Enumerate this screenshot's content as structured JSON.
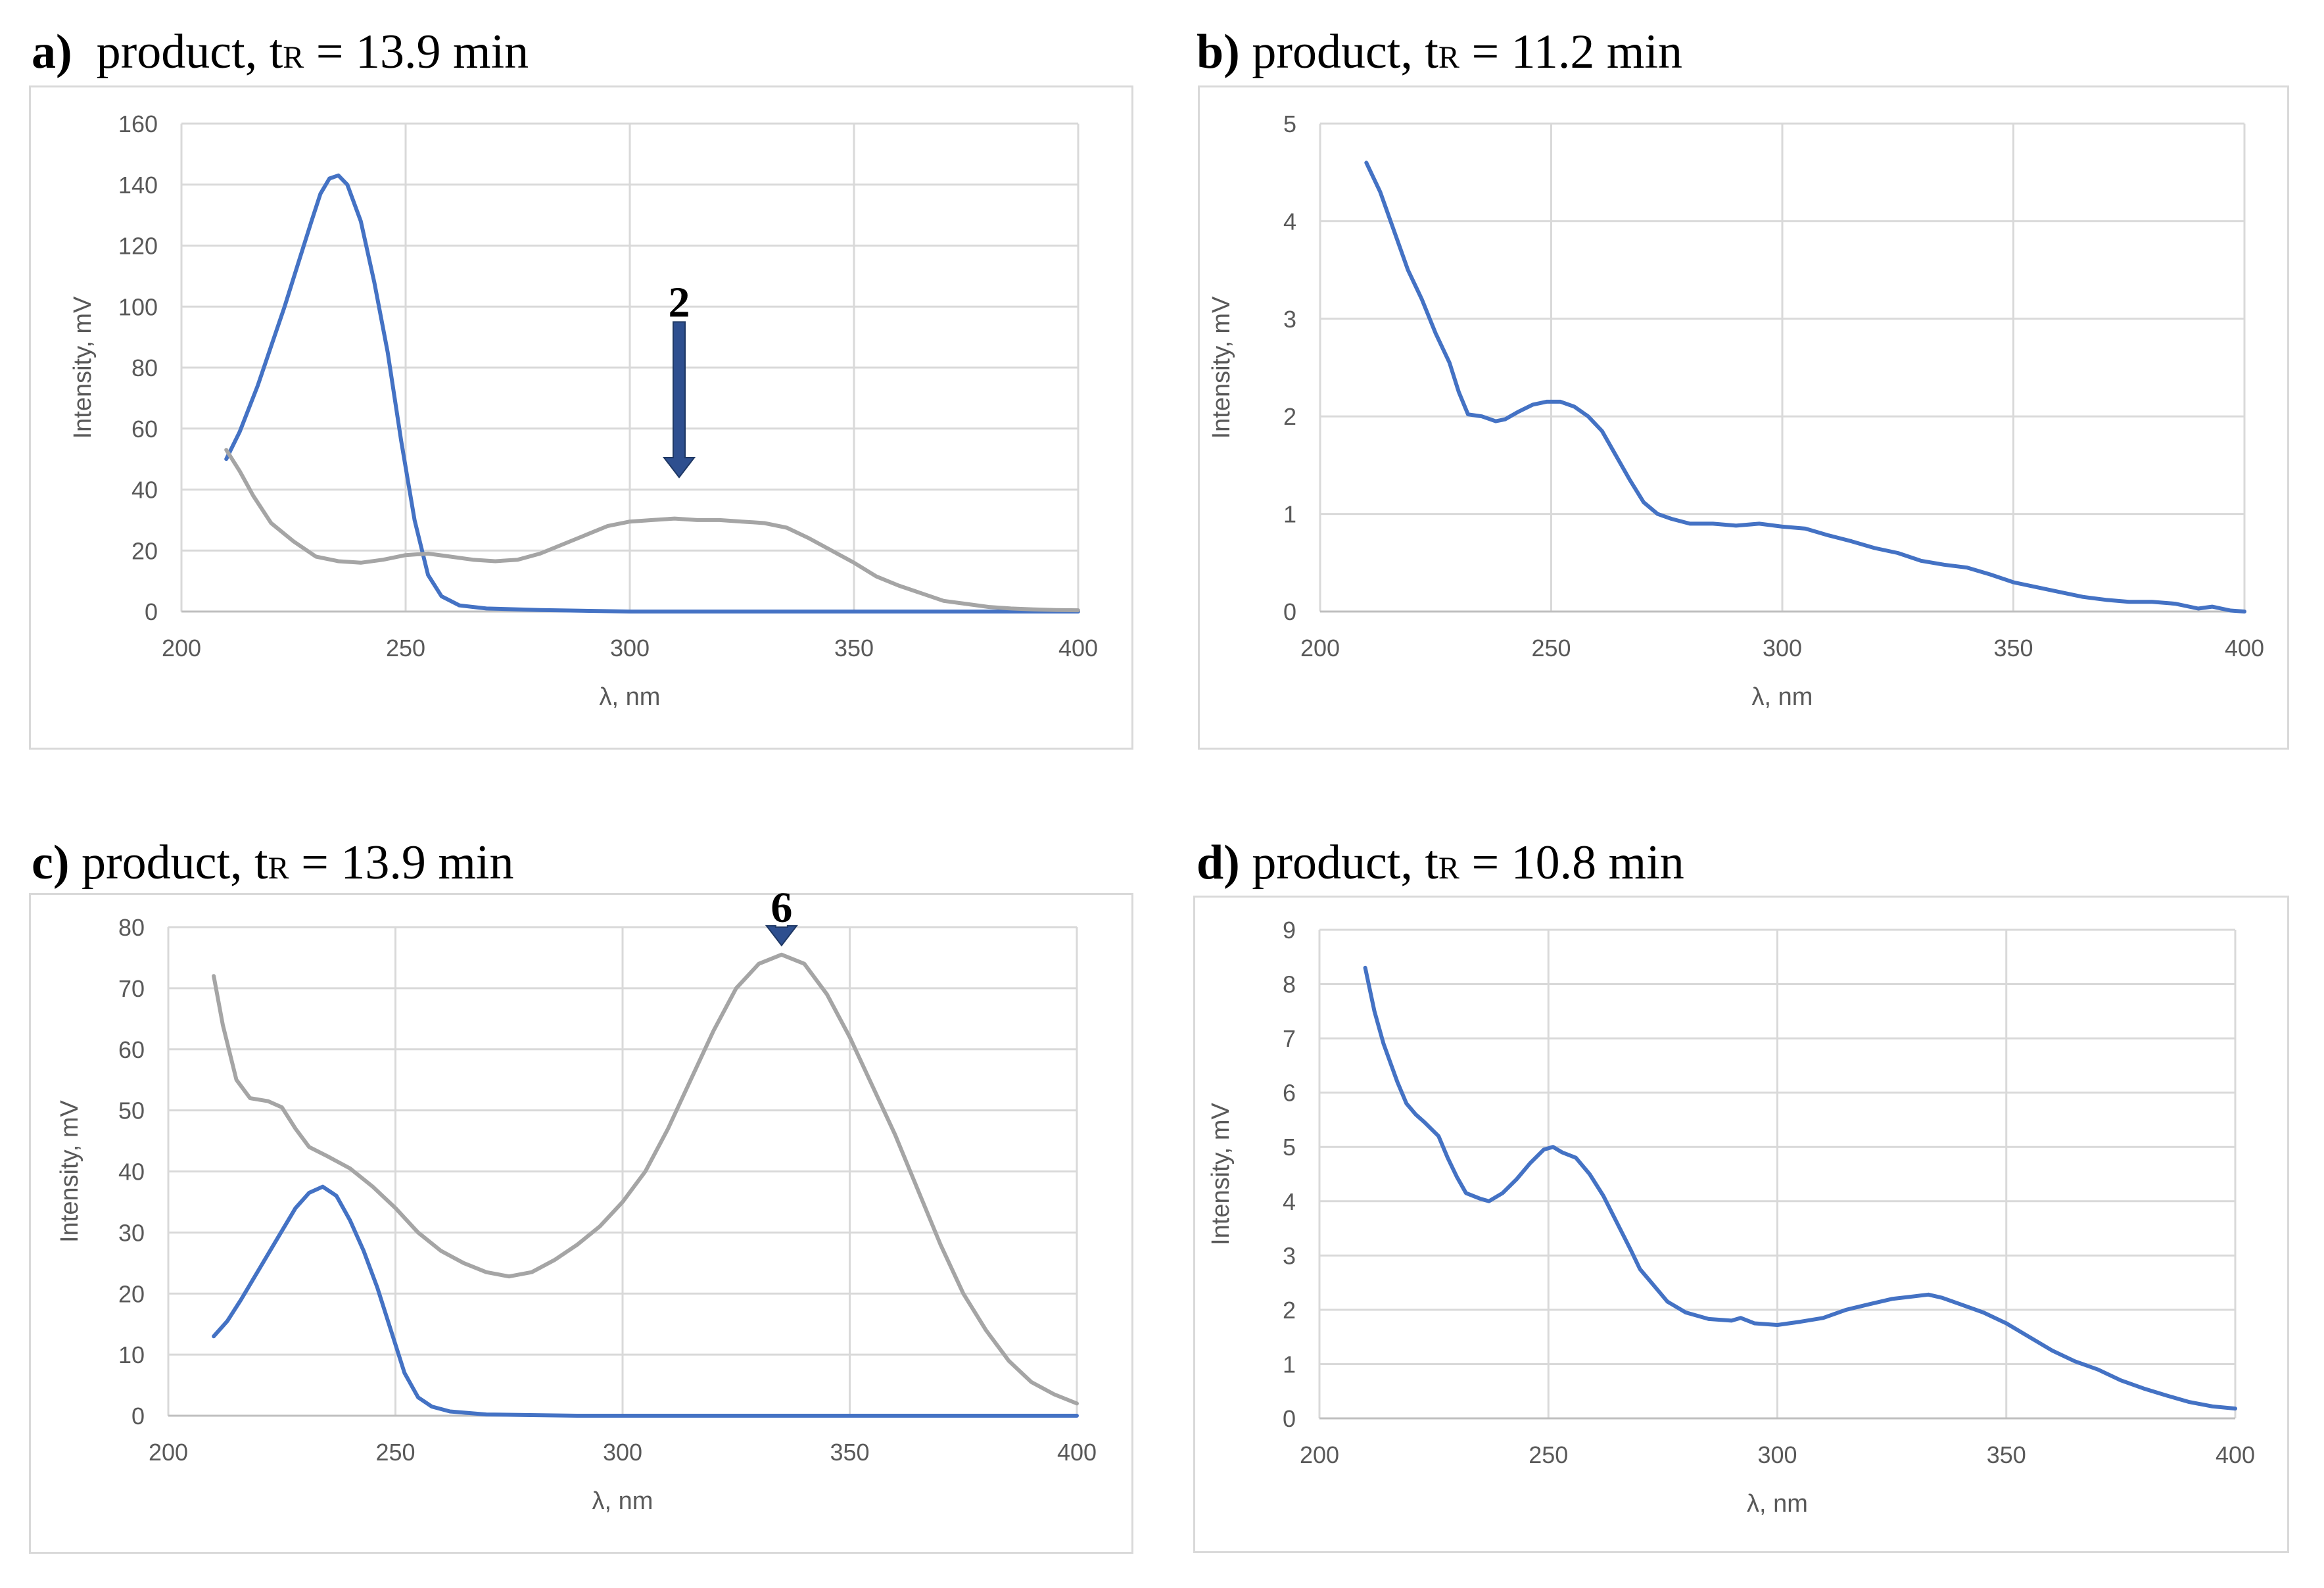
{
  "colors": {
    "blue": "#4472c4",
    "gray": "#a5a5a5",
    "grid": "#d9d9d9",
    "arrow": "#2e4f8f",
    "tick_text": "#595959"
  },
  "panels": [
    {
      "label": "a)",
      "prefix": "product, t",
      "sub": "R",
      "suffix": " = 13.9 min"
    },
    {
      "label": "b)",
      "prefix": "product, t",
      "sub": "R",
      "suffix": " = 11.2 min"
    },
    {
      "label": "c)",
      "prefix": "product, t",
      "sub": "R",
      "suffix": " = 13.9 min"
    },
    {
      "label": "d)",
      "prefix": "product, t",
      "sub": "R",
      "suffix": " = 10.8 min"
    }
  ],
  "chart_data": [
    {
      "type": "line",
      "title": "a) product, tR = 13.9 min",
      "xlabel": "λ, nm",
      "ylabel": "Intensity, mV",
      "xlim": [
        200,
        400
      ],
      "ylim": [
        0,
        160
      ],
      "xticks": [
        200,
        250,
        300,
        350,
        400
      ],
      "yticks": [
        0,
        20,
        40,
        60,
        80,
        100,
        120,
        140,
        160
      ],
      "grid": true,
      "annotation": {
        "text": "2",
        "x": 311,
        "y_tip": 44,
        "y_top": 95
      },
      "series": [
        {
          "name": "blue",
          "color": "#4472c4",
          "points": [
            [
              210,
              50
            ],
            [
              213,
              59
            ],
            [
              217,
              74
            ],
            [
              220,
              87
            ],
            [
              223,
              100
            ],
            [
              226,
              114
            ],
            [
              229,
              128
            ],
            [
              231,
              137
            ],
            [
              233,
              142
            ],
            [
              235,
              143
            ],
            [
              237,
              140
            ],
            [
              240,
              128
            ],
            [
              243,
              108
            ],
            [
              246,
              85
            ],
            [
              249,
              56
            ],
            [
              252,
              30
            ],
            [
              255,
              12
            ],
            [
              258,
              5
            ],
            [
              262,
              2
            ],
            [
              268,
              1
            ],
            [
              280,
              0.5
            ],
            [
              300,
              0
            ],
            [
              400,
              0
            ]
          ]
        },
        {
          "name": "gray",
          "color": "#a5a5a5",
          "points": [
            [
              210,
              53
            ],
            [
              213,
              46
            ],
            [
              216,
              38
            ],
            [
              220,
              29
            ],
            [
              225,
              23
            ],
            [
              230,
              18
            ],
            [
              235,
              16.5
            ],
            [
              240,
              16
            ],
            [
              245,
              17
            ],
            [
              250,
              18.5
            ],
            [
              255,
              19
            ],
            [
              260,
              18
            ],
            [
              265,
              17
            ],
            [
              270,
              16.5
            ],
            [
              275,
              17
            ],
            [
              280,
              19
            ],
            [
              285,
              22
            ],
            [
              290,
              25
            ],
            [
              295,
              28
            ],
            [
              300,
              29.5
            ],
            [
              305,
              30
            ],
            [
              310,
              30.5
            ],
            [
              315,
              30
            ],
            [
              320,
              30
            ],
            [
              325,
              29.5
            ],
            [
              330,
              29
            ],
            [
              335,
              27.5
            ],
            [
              340,
              24
            ],
            [
              345,
              20
            ],
            [
              350,
              16
            ],
            [
              355,
              11.5
            ],
            [
              360,
              8.5
            ],
            [
              365,
              6
            ],
            [
              370,
              3.5
            ],
            [
              375,
              2.5
            ],
            [
              380,
              1.5
            ],
            [
              385,
              1
            ],
            [
              390,
              0.7
            ],
            [
              395,
              0.5
            ],
            [
              400,
              0.4
            ]
          ]
        }
      ]
    },
    {
      "type": "line",
      "title": "b) product, tR = 11.2 min",
      "xlabel": "λ, nm",
      "ylabel": "Intensity, mV",
      "xlim": [
        200,
        400
      ],
      "ylim": [
        0,
        5
      ],
      "xticks": [
        200,
        250,
        300,
        350,
        400
      ],
      "yticks": [
        0,
        1,
        2,
        3,
        4,
        5
      ],
      "grid": true,
      "series": [
        {
          "name": "blue",
          "color": "#4472c4",
          "points": [
            [
              210,
              4.6
            ],
            [
              213,
              4.3
            ],
            [
              216,
              3.9
            ],
            [
              219,
              3.5
            ],
            [
              222,
              3.2
            ],
            [
              225,
              2.85
            ],
            [
              228,
              2.55
            ],
            [
              230,
              2.25
            ],
            [
              232,
              2.02
            ],
            [
              235,
              2.0
            ],
            [
              238,
              1.95
            ],
            [
              240,
              1.97
            ],
            [
              243,
              2.05
            ],
            [
              246,
              2.12
            ],
            [
              249,
              2.15
            ],
            [
              252,
              2.15
            ],
            [
              255,
              2.1
            ],
            [
              258,
              2.0
            ],
            [
              261,
              1.85
            ],
            [
              264,
              1.6
            ],
            [
              267,
              1.35
            ],
            [
              270,
              1.12
            ],
            [
              273,
              1.0
            ],
            [
              276,
              0.95
            ],
            [
              280,
              0.9
            ],
            [
              285,
              0.9
            ],
            [
              290,
              0.88
            ],
            [
              295,
              0.9
            ],
            [
              300,
              0.87
            ],
            [
              305,
              0.85
            ],
            [
              310,
              0.78
            ],
            [
              315,
              0.72
            ],
            [
              320,
              0.65
            ],
            [
              325,
              0.6
            ],
            [
              330,
              0.52
            ],
            [
              335,
              0.48
            ],
            [
              340,
              0.45
            ],
            [
              345,
              0.38
            ],
            [
              350,
              0.3
            ],
            [
              355,
              0.25
            ],
            [
              360,
              0.2
            ],
            [
              365,
              0.15
            ],
            [
              370,
              0.12
            ],
            [
              375,
              0.1
            ],
            [
              380,
              0.1
            ],
            [
              385,
              0.08
            ],
            [
              390,
              0.03
            ],
            [
              393,
              0.05
            ],
            [
              397,
              0.01
            ],
            [
              400,
              0.0
            ]
          ]
        }
      ]
    },
    {
      "type": "line",
      "title": "c) product, tR = 13.9 min",
      "xlabel": "λ, nm",
      "ylabel": "Intensity, mV",
      "xlim": [
        200,
        400
      ],
      "ylim": [
        0,
        80
      ],
      "xticks": [
        200,
        250,
        300,
        350,
        400
      ],
      "yticks": [
        0,
        10,
        20,
        30,
        40,
        50,
        60,
        70,
        80
      ],
      "grid": true,
      "annotation": {
        "text": "6",
        "x": 335,
        "y_tip": 77,
        "y_top": 80
      },
      "series": [
        {
          "name": "blue",
          "color": "#4472c4",
          "points": [
            [
              210,
              13
            ],
            [
              213,
              15.5
            ],
            [
              216,
              19
            ],
            [
              220,
              24
            ],
            [
              224,
              29
            ],
            [
              228,
              34
            ],
            [
              231,
              36.5
            ],
            [
              234,
              37.5
            ],
            [
              237,
              36
            ],
            [
              240,
              32
            ],
            [
              243,
              27
            ],
            [
              246,
              21
            ],
            [
              249,
              14
            ],
            [
              252,
              7
            ],
            [
              255,
              3
            ],
            [
              258,
              1.5
            ],
            [
              262,
              0.7
            ],
            [
              270,
              0.2
            ],
            [
              290,
              0
            ],
            [
              400,
              0
            ]
          ]
        },
        {
          "name": "gray",
          "color": "#a5a5a5",
          "points": [
            [
              210,
              72
            ],
            [
              212,
              64
            ],
            [
              215,
              55
            ],
            [
              218,
              52
            ],
            [
              222,
              51.5
            ],
            [
              225,
              50.5
            ],
            [
              228,
              47
            ],
            [
              231,
              44
            ],
            [
              235,
              42.5
            ],
            [
              240,
              40.5
            ],
            [
              245,
              37.5
            ],
            [
              250,
              34
            ],
            [
              255,
              30
            ],
            [
              260,
              27
            ],
            [
              265,
              25
            ],
            [
              270,
              23.5
            ],
            [
              275,
              22.8
            ],
            [
              280,
              23.5
            ],
            [
              285,
              25.5
            ],
            [
              290,
              28
            ],
            [
              295,
              31
            ],
            [
              300,
              35
            ],
            [
              305,
              40
            ],
            [
              310,
              47
            ],
            [
              315,
              55
            ],
            [
              320,
              63
            ],
            [
              325,
              70
            ],
            [
              330,
              74
            ],
            [
              335,
              75.5
            ],
            [
              340,
              74
            ],
            [
              345,
              69
            ],
            [
              350,
              62
            ],
            [
              355,
              54
            ],
            [
              360,
              46
            ],
            [
              365,
              37
            ],
            [
              370,
              28
            ],
            [
              375,
              20
            ],
            [
              380,
              14
            ],
            [
              385,
              9
            ],
            [
              390,
              5.5
            ],
            [
              395,
              3.5
            ],
            [
              400,
              2
            ]
          ]
        }
      ]
    },
    {
      "type": "line",
      "title": "d) product, tR = 10.8 min",
      "xlabel": "λ, nm",
      "ylabel": "Intensity, mV",
      "xlim": [
        200,
        400
      ],
      "ylim": [
        0,
        9
      ],
      "xticks": [
        200,
        250,
        300,
        350,
        400
      ],
      "yticks": [
        0,
        1,
        2,
        3,
        4,
        5,
        6,
        7,
        8,
        9
      ],
      "grid": true,
      "series": [
        {
          "name": "blue",
          "color": "#4472c4",
          "points": [
            [
              210,
              8.3
            ],
            [
              212,
              7.5
            ],
            [
              214,
              6.9
            ],
            [
              217,
              6.2
            ],
            [
              219,
              5.8
            ],
            [
              221,
              5.6
            ],
            [
              223,
              5.45
            ],
            [
              226,
              5.2
            ],
            [
              228,
              4.8
            ],
            [
              230,
              4.45
            ],
            [
              232,
              4.15
            ],
            [
              235,
              4.05
            ],
            [
              237,
              4.0
            ],
            [
              240,
              4.15
            ],
            [
              243,
              4.4
            ],
            [
              246,
              4.7
            ],
            [
              249,
              4.95
            ],
            [
              251,
              5.0
            ],
            [
              253,
              4.9
            ],
            [
              256,
              4.8
            ],
            [
              259,
              4.5
            ],
            [
              262,
              4.1
            ],
            [
              265,
              3.6
            ],
            [
              268,
              3.1
            ],
            [
              270,
              2.75
            ],
            [
              273,
              2.45
            ],
            [
              276,
              2.15
            ],
            [
              280,
              1.95
            ],
            [
              285,
              1.83
            ],
            [
              290,
              1.8
            ],
            [
              292,
              1.85
            ],
            [
              295,
              1.75
            ],
            [
              300,
              1.72
            ],
            [
              305,
              1.78
            ],
            [
              310,
              1.85
            ],
            [
              315,
              2.0
            ],
            [
              320,
              2.1
            ],
            [
              325,
              2.2
            ],
            [
              330,
              2.25
            ],
            [
              333,
              2.28
            ],
            [
              336,
              2.22
            ],
            [
              340,
              2.1
            ],
            [
              345,
              1.95
            ],
            [
              350,
              1.75
            ],
            [
              355,
              1.5
            ],
            [
              360,
              1.25
            ],
            [
              365,
              1.05
            ],
            [
              370,
              0.9
            ],
            [
              375,
              0.7
            ],
            [
              380,
              0.55
            ],
            [
              385,
              0.42
            ],
            [
              390,
              0.3
            ],
            [
              395,
              0.22
            ],
            [
              400,
              0.18
            ]
          ]
        }
      ]
    }
  ]
}
